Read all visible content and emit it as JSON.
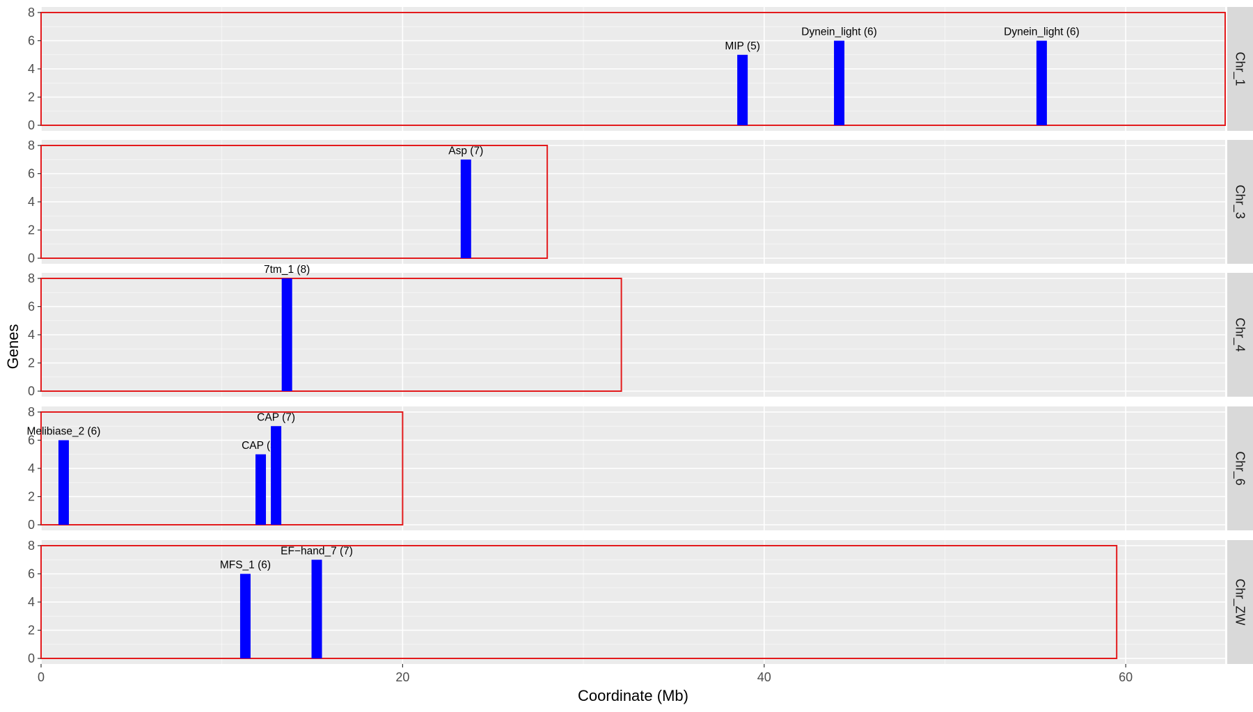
{
  "chart_data": {
    "type": "bar",
    "xlabel": "Coordinate (Mb)",
    "ylabel": "Genes",
    "xlim": [
      0,
      65.5
    ],
    "ylim": [
      0,
      8
    ],
    "x_ticks": [
      0,
      20,
      40,
      60
    ],
    "y_ticks": [
      0,
      2,
      4,
      6,
      8
    ],
    "grid": true,
    "colors": {
      "bar": "#0000FF",
      "chromosome_outline": "#E31A1C",
      "panel_background": "#EBEBEB",
      "grid": "#FFFFFF",
      "strip_background": "#D9D9D9"
    },
    "panels": [
      {
        "name": "Chr_1",
        "chromosome_length_mb": 65.5,
        "bars": [
          {
            "x": 38.8,
            "genes": 5,
            "label": "MIP (5)"
          },
          {
            "x": 44.15,
            "genes": 6,
            "label": "Dynein_light (6)"
          },
          {
            "x": 55.35,
            "genes": 6,
            "label": "Dynein_light (6)"
          }
        ]
      },
      {
        "name": "Chr_3",
        "chromosome_length_mb": 28.0,
        "bars": [
          {
            "x": 23.5,
            "genes": 7,
            "label": "Asp (7)"
          }
        ]
      },
      {
        "name": "Chr_4",
        "chromosome_length_mb": 32.1,
        "bars": [
          {
            "x": 13.6,
            "genes": 8,
            "label": "7tm_1 (8)"
          }
        ]
      },
      {
        "name": "Chr_6",
        "chromosome_length_mb": 20.0,
        "bars": [
          {
            "x": 1.25,
            "genes": 6,
            "label": "Melibiase_2 (6)"
          },
          {
            "x": 12.15,
            "genes": 5,
            "label": "CAP (5)"
          },
          {
            "x": 13.0,
            "genes": 7,
            "label": "CAP (7)"
          }
        ]
      },
      {
        "name": "Chr_ZW",
        "chromosome_length_mb": 59.5,
        "bars": [
          {
            "x": 11.3,
            "genes": 6,
            "label": "MFS_1 (6)"
          },
          {
            "x": 15.25,
            "genes": 7,
            "label": "EF−hand_7 (7)"
          }
        ]
      }
    ]
  }
}
